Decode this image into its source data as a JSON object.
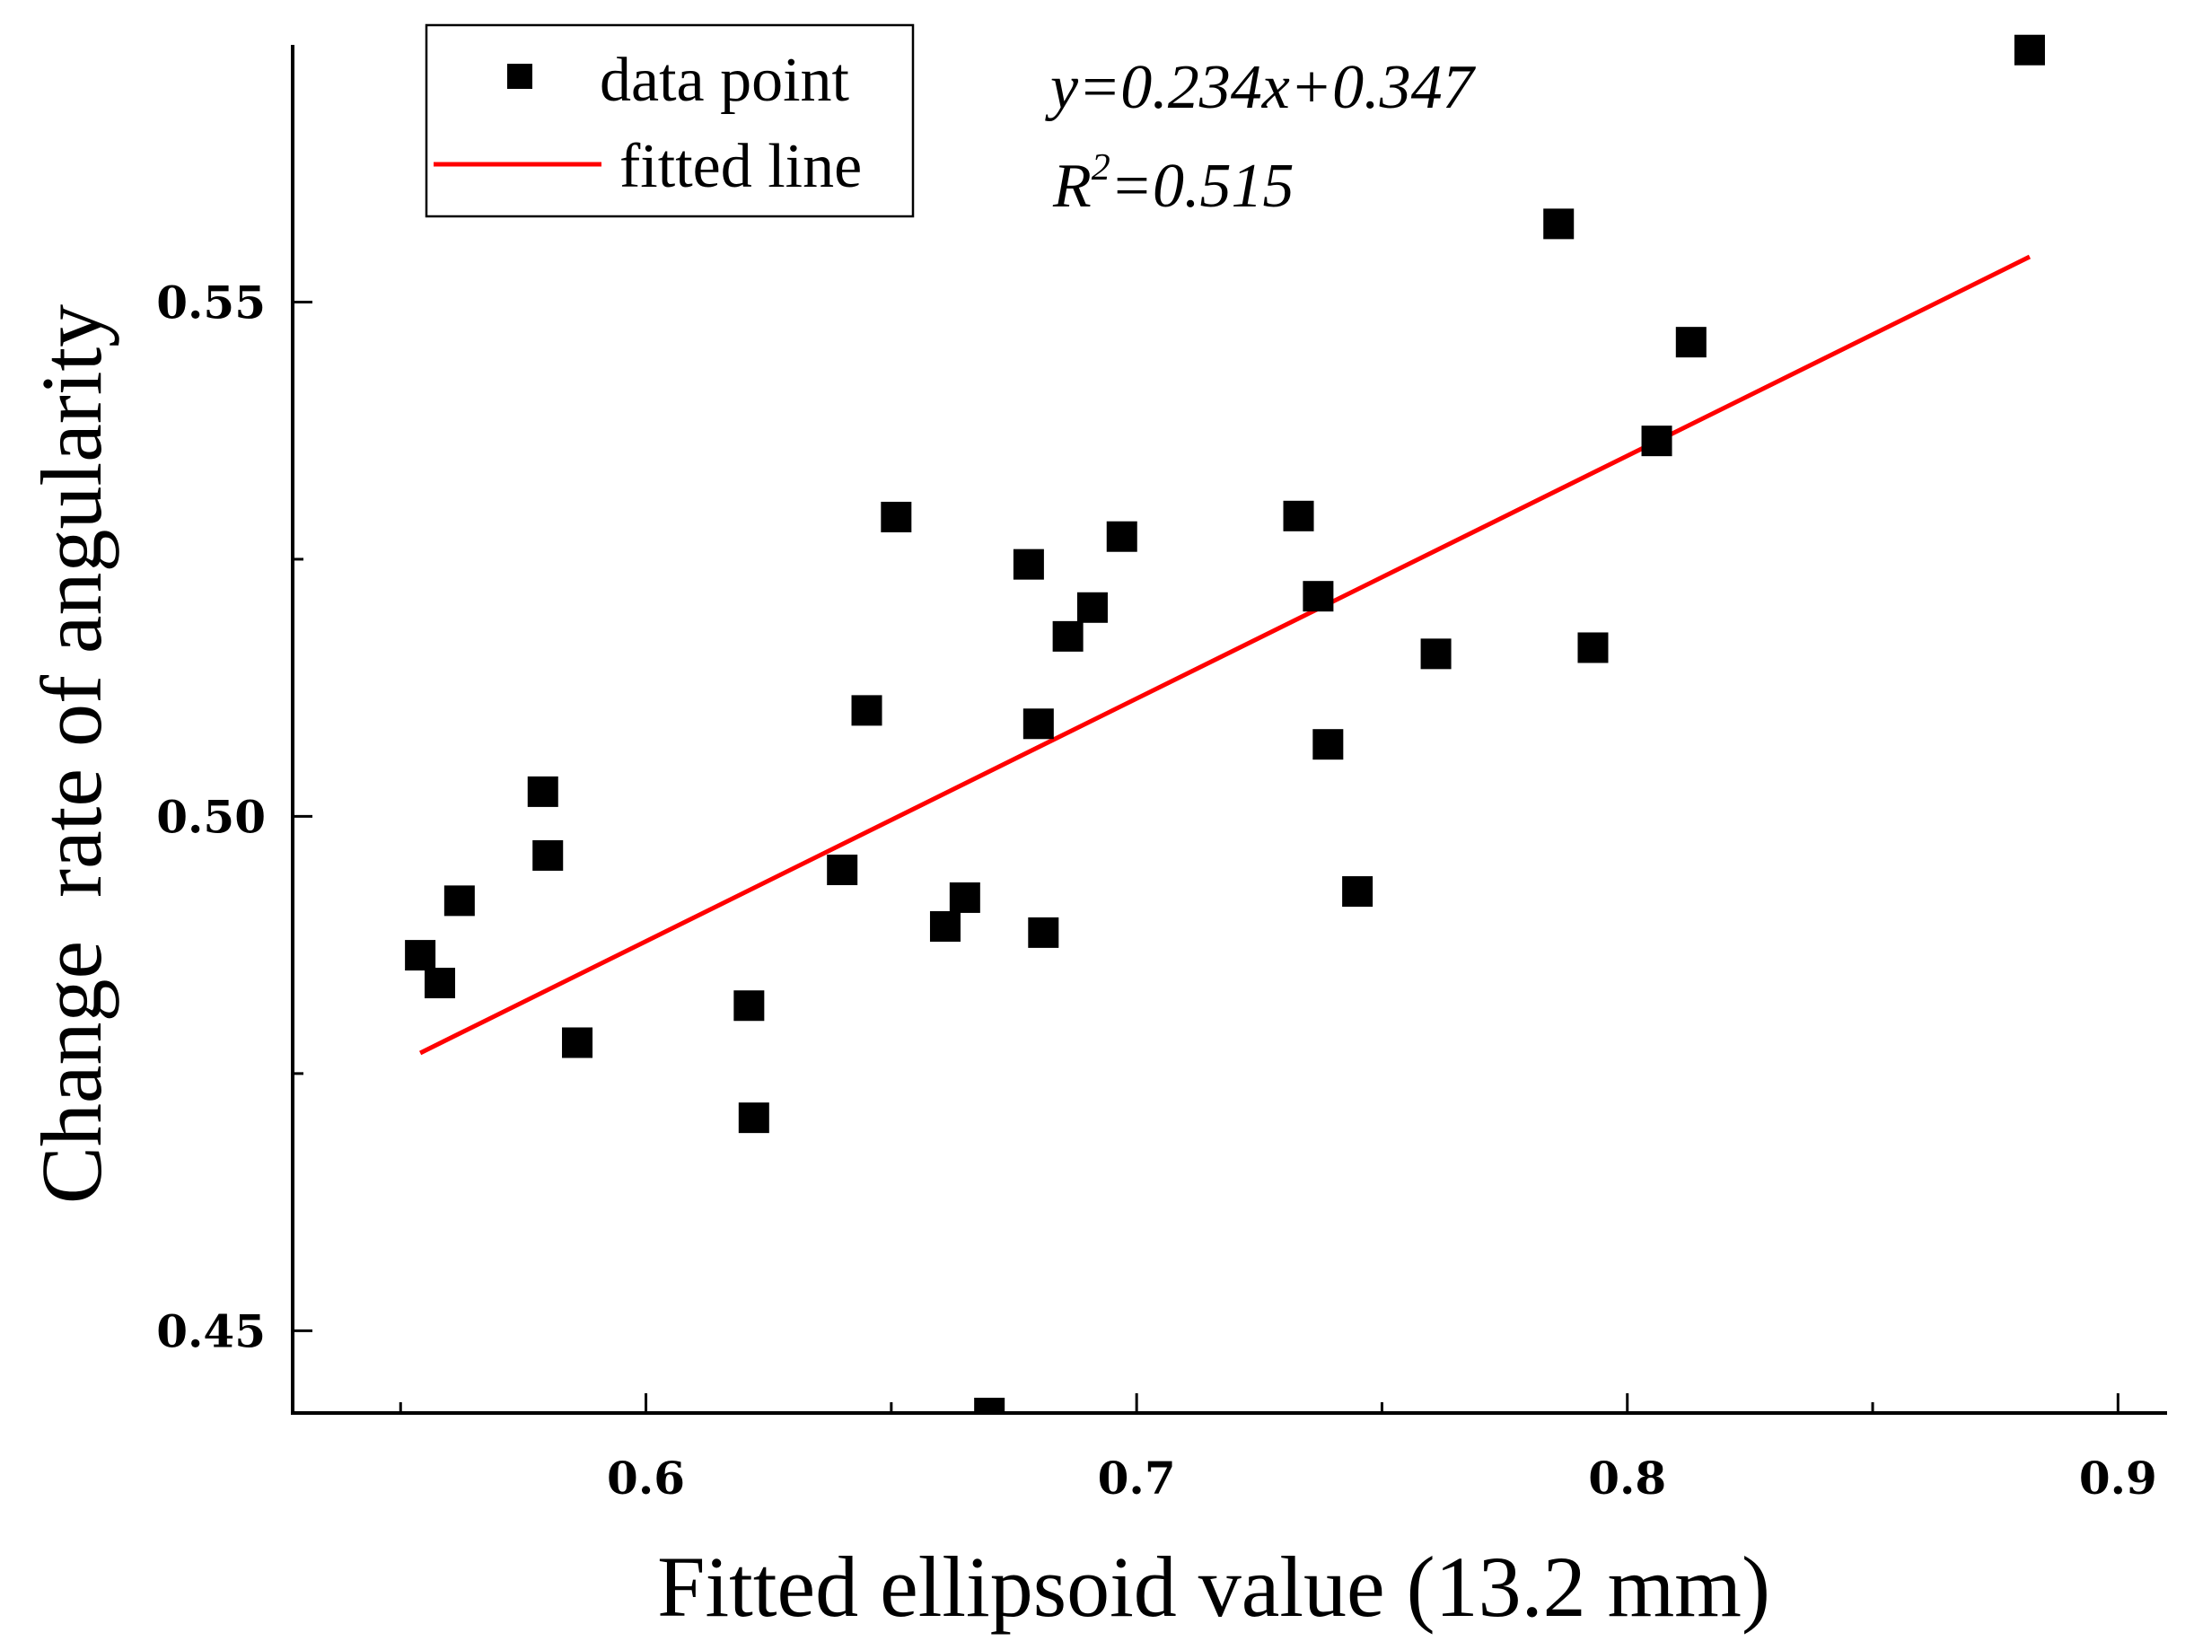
{
  "chart_data": {
    "type": "scatter",
    "xlabel": "Fitted ellipsoid value (13.2 mm)",
    "ylabel": "Change  rate of angularity",
    "xlim": [
      0.528,
      0.91
    ],
    "ylim": [
      0.442,
      0.575
    ],
    "x_ticks": [
      {
        "value": 0.6,
        "label": "0.6"
      },
      {
        "value": 0.7,
        "label": "0.7"
      },
      {
        "value": 0.8,
        "label": "0.8"
      },
      {
        "value": 0.9,
        "label": "0.9"
      }
    ],
    "x_minor_ticks": [
      0.55,
      0.65,
      0.75,
      0.85
    ],
    "y_ticks": [
      {
        "value": 0.45,
        "label": "0.45"
      },
      {
        "value": 0.5,
        "label": "0.50"
      },
      {
        "value": 0.55,
        "label": "0.55"
      }
    ],
    "y_minor_ticks": [
      0.475,
      0.525
    ],
    "grid": false,
    "legend_position": "top-left",
    "series": [
      {
        "name": "data point",
        "kind": "scatter",
        "marker": "square",
        "color": "#000000",
        "points": [
          {
            "x": 0.554,
            "y": 0.4865
          },
          {
            "x": 0.558,
            "y": 0.4838
          },
          {
            "x": 0.562,
            "y": 0.4918
          },
          {
            "x": 0.579,
            "y": 0.5024
          },
          {
            "x": 0.58,
            "y": 0.4962
          },
          {
            "x": 0.586,
            "y": 0.478
          },
          {
            "x": 0.621,
            "y": 0.4816
          },
          {
            "x": 0.622,
            "y": 0.4707
          },
          {
            "x": 0.64,
            "y": 0.4948
          },
          {
            "x": 0.645,
            "y": 0.5103
          },
          {
            "x": 0.651,
            "y": 0.5291
          },
          {
            "x": 0.661,
            "y": 0.4893
          },
          {
            "x": 0.665,
            "y": 0.4921
          },
          {
            "x": 0.67,
            "y": 0.442
          },
          {
            "x": 0.678,
            "y": 0.5245
          },
          {
            "x": 0.68,
            "y": 0.509
          },
          {
            "x": 0.681,
            "y": 0.4887
          },
          {
            "x": 0.686,
            "y": 0.5175
          },
          {
            "x": 0.691,
            "y": 0.5203
          },
          {
            "x": 0.697,
            "y": 0.5272
          },
          {
            "x": 0.733,
            "y": 0.5292
          },
          {
            "x": 0.737,
            "y": 0.5214
          },
          {
            "x": 0.739,
            "y": 0.507
          },
          {
            "x": 0.745,
            "y": 0.4927
          },
          {
            "x": 0.761,
            "y": 0.5158
          },
          {
            "x": 0.786,
            "y": 0.5576
          },
          {
            "x": 0.793,
            "y": 0.5164
          },
          {
            "x": 0.806,
            "y": 0.5365
          },
          {
            "x": 0.813,
            "y": 0.5461
          },
          {
            "x": 0.882,
            "y": 0.5745
          }
        ]
      },
      {
        "name": "fitted line",
        "kind": "line",
        "color": "#ff0000",
        "x": [
          0.554,
          0.882
        ],
        "y": [
          0.477,
          0.5544
        ]
      }
    ],
    "annotations": {
      "equation": "y=0.234x+0.347",
      "r2_prefix": "R",
      "r2_superscript": "2",
      "r2_value": "=0.515"
    }
  }
}
